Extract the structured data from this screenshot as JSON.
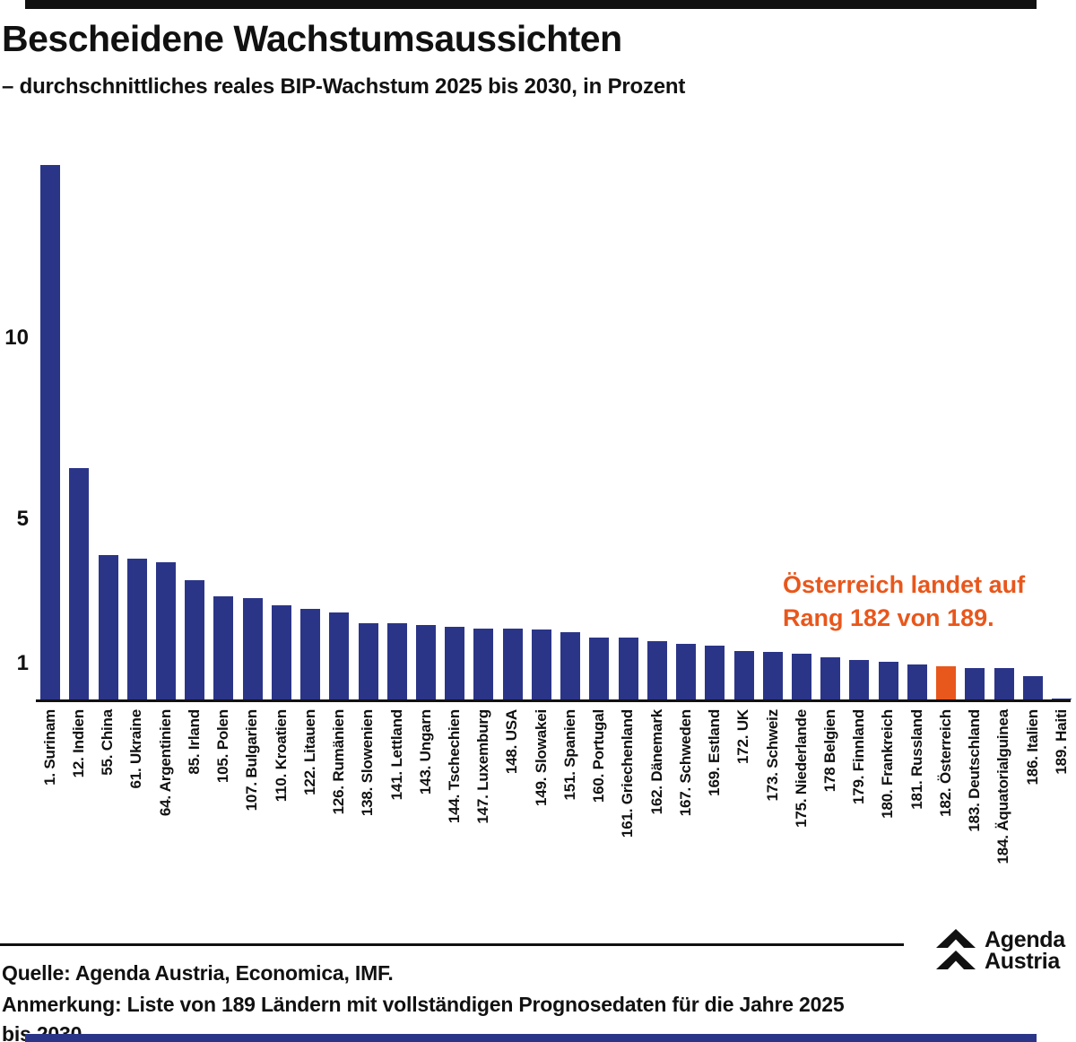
{
  "chart_data": {
    "type": "bar",
    "title": "Bescheidene Wachstumsaussichten",
    "subtitle": "– durchschnittliches reales BIP-Wachstum 2025 bis 2030, in Prozent",
    "categories": [
      "1. Surinam",
      "12. Indien",
      "55. China",
      "61. Ukraine",
      "64. Argentinien",
      "85. Irland",
      "105. Polen",
      "107. Bulgarien",
      "110. Kroatien",
      "122. Litauen",
      "126. Rumänien",
      "138. Slowenien",
      "141. Lettland",
      "143. Ungarn",
      "144. Tschechien",
      "147. Luxemburg",
      "148. USA",
      "149. Slowakei",
      "151. Spanien",
      "160. Portugal",
      "161. Griechenland",
      "162. Dänemark",
      "167. Schweden",
      "169. Estland",
      "172. UK",
      "173. Schweiz",
      "175. Niederlande",
      "178 Belgien",
      "179. Finnland",
      "180. Frankreich",
      "181. Russland",
      "182. Österreich",
      "183. Deutschland",
      "184. Äquatorialguinea",
      "186. Italien",
      "189. Haiti"
    ],
    "values": [
      14.8,
      6.4,
      4.0,
      3.9,
      3.8,
      3.3,
      2.85,
      2.8,
      2.6,
      2.5,
      2.4,
      2.1,
      2.1,
      2.05,
      2.0,
      1.95,
      1.95,
      1.93,
      1.85,
      1.7,
      1.7,
      1.62,
      1.53,
      1.5,
      1.35,
      1.31,
      1.26,
      1.16,
      1.09,
      1.04,
      0.97,
      0.92,
      0.88,
      0.87,
      0.64,
      0.03
    ],
    "yticks": [
      1,
      5,
      10
    ],
    "ylim": [
      0,
      15.2
    ],
    "grid": false,
    "bar_color": "#2b3588",
    "highlight_index": 31,
    "highlight_color": "#e8571c",
    "annotation": {
      "line1": "Österreich landet auf",
      "line2": "Rang 182 von 189."
    }
  },
  "footer": {
    "source": "Quelle: Agenda Austria, Economica, IMF.",
    "note_line1": "Anmerkung: Liste von 189 Ländern mit vollständigen Prognosedaten für die Jahre 2025",
    "note_line2": "bis 2030.",
    "logo": {
      "line1": "Agenda",
      "line2": "Austria"
    }
  }
}
